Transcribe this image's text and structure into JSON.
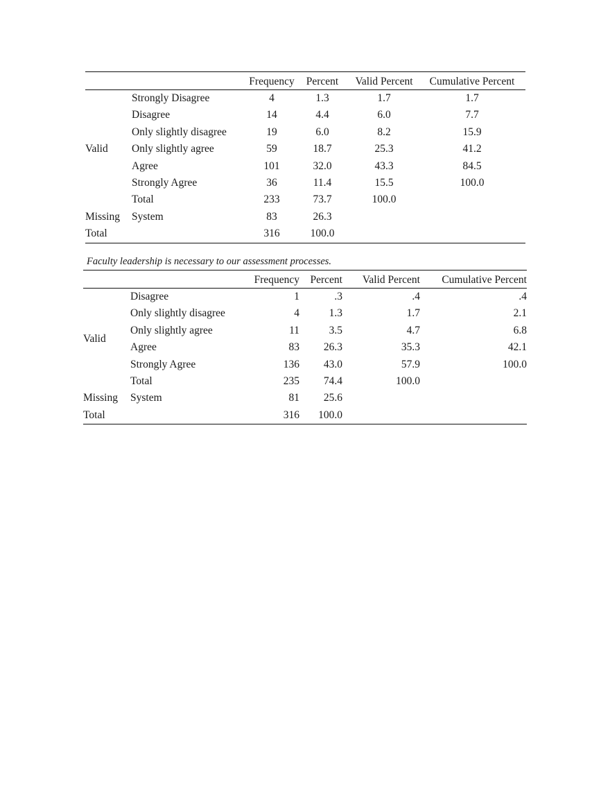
{
  "table1": {
    "headers": [
      "Frequency",
      "Percent",
      "Valid Percent",
      "Cumulative Percent"
    ],
    "valid_label": "Valid",
    "missing_label": "Missing",
    "total_label": "Total",
    "valid_rows": [
      {
        "label": "Strongly Disagree",
        "frequency": "4",
        "percent": "1.3",
        "valid_percent": "1.7",
        "cumulative_percent": "1.7"
      },
      {
        "label": "Disagree",
        "frequency": "14",
        "percent": "4.4",
        "valid_percent": "6.0",
        "cumulative_percent": "7.7"
      },
      {
        "label": "Only slightly disagree",
        "frequency": "19",
        "percent": "6.0",
        "valid_percent": "8.2",
        "cumulative_percent": "15.9"
      },
      {
        "label": "Only slightly agree",
        "frequency": "59",
        "percent": "18.7",
        "valid_percent": "25.3",
        "cumulative_percent": "41.2"
      },
      {
        "label": "Agree",
        "frequency": "101",
        "percent": "32.0",
        "valid_percent": "43.3",
        "cumulative_percent": "84.5"
      },
      {
        "label": "Strongly Agree",
        "frequency": "36",
        "percent": "11.4",
        "valid_percent": "15.5",
        "cumulative_percent": "100.0"
      },
      {
        "label": "Total",
        "frequency": "233",
        "percent": "73.7",
        "valid_percent": "100.0",
        "cumulative_percent": ""
      }
    ],
    "missing_row": {
      "label": "System",
      "frequency": "83",
      "percent": "26.3"
    },
    "total_row": {
      "frequency": "316",
      "percent": "100.0"
    }
  },
  "table2": {
    "caption": "Faculty leadership is necessary to our assessment processes.",
    "headers": [
      "Frequency",
      "Percent",
      "Valid Percent",
      "Cumulative Percent"
    ],
    "valid_label": "Valid",
    "missing_label": "Missing",
    "total_label": "Total",
    "valid_rows": [
      {
        "label": "Disagree",
        "frequency": "1",
        "percent": ".3",
        "valid_percent": ".4",
        "cumulative_percent": ".4"
      },
      {
        "label": "Only slightly disagree",
        "frequency": "4",
        "percent": "1.3",
        "valid_percent": "1.7",
        "cumulative_percent": "2.1"
      },
      {
        "label": "Only slightly agree",
        "frequency": "11",
        "percent": "3.5",
        "valid_percent": "4.7",
        "cumulative_percent": "6.8"
      },
      {
        "label": "Agree",
        "frequency": "83",
        "percent": "26.3",
        "valid_percent": "35.3",
        "cumulative_percent": "42.1"
      },
      {
        "label": "Strongly Agree",
        "frequency": "136",
        "percent": "43.0",
        "valid_percent": "57.9",
        "cumulative_percent": "100.0"
      },
      {
        "label": "Total",
        "frequency": "235",
        "percent": "74.4",
        "valid_percent": "100.0",
        "cumulative_percent": ""
      }
    ],
    "missing_row": {
      "label": "System",
      "frequency": "81",
      "percent": "25.6"
    },
    "total_row": {
      "frequency": "316",
      "percent": "100.0"
    }
  }
}
